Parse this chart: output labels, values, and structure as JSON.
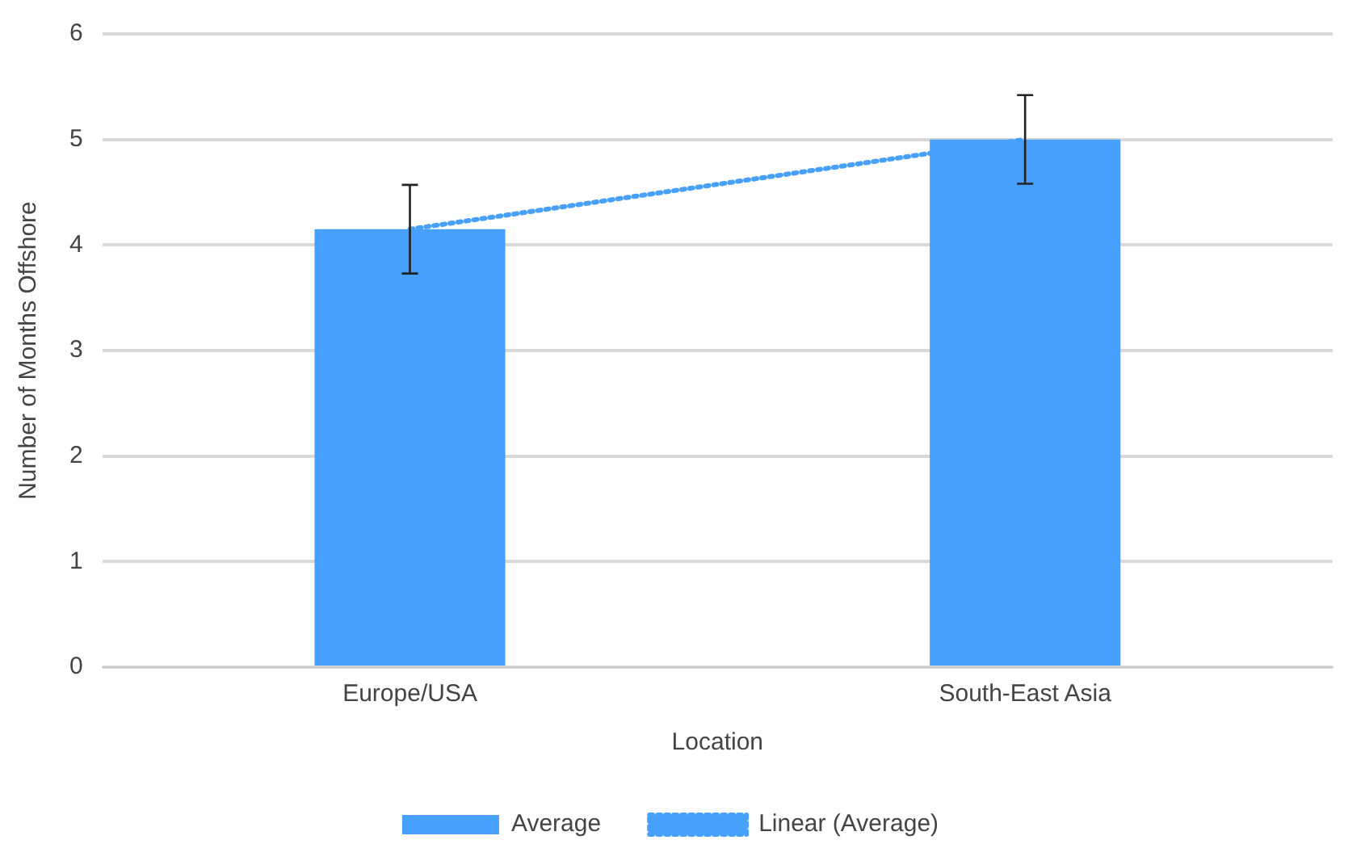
{
  "chart_data": {
    "type": "bar",
    "xlabel": "Location",
    "ylabel": "Number of Months Offshore",
    "categories": [
      "Europe/USA",
      "South-East Asia"
    ],
    "series": [
      {
        "name": "Average",
        "color": "#47a0fb",
        "values": [
          4.15,
          5.0
        ],
        "errors": [
          0.42,
          0.42
        ]
      },
      {
        "name": "Linear (Average)",
        "type": "line",
        "color": "#47a0fb",
        "x": [
          "Europe/USA",
          "South-East Asia"
        ],
        "values": [
          4.15,
          5.0
        ]
      }
    ],
    "ylim": [
      0,
      6
    ],
    "yticks": [
      0,
      1,
      2,
      3,
      4,
      5,
      6
    ],
    "grid": "y",
    "legend": "bottom",
    "marker": "none",
    "line_style": "dotted"
  }
}
